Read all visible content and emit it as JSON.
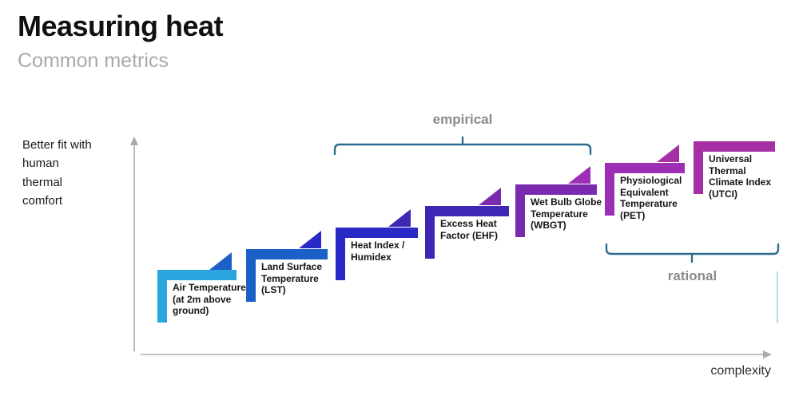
{
  "header": {
    "title": "Measuring heat",
    "subtitle": "Common metrics"
  },
  "y_axis": {
    "label": "Better fit with\nhuman\nthermal\ncomfort"
  },
  "x_axis": {
    "label": "complexity"
  },
  "brackets": {
    "empirical": {
      "label": "empirical"
    },
    "rational": {
      "label": "rational"
    }
  },
  "colors": {
    "bracket": "#2E6D8E",
    "bracket_label": "#8A8A8A",
    "axis_arrow": "#ABABAB",
    "accent_line": "#B5D9E6",
    "title": "#101010",
    "subtitle": "#A9A9A9"
  },
  "steps": [
    {
      "label": "Air Temperature (at 2m above ground)",
      "color": "#2AA5DD"
    },
    {
      "label": "Land Surface Temperature (LST)",
      "color": "#1A60C6"
    },
    {
      "label": "Heat Index / Humidex",
      "color": "#2929C6"
    },
    {
      "label": "Excess Heat Factor (EHF)",
      "color": "#3E28B3"
    },
    {
      "label": "Wet Bulb Globe Temperature (WBGT)",
      "color": "#7A2AAE"
    },
    {
      "label": "Physiological Equivalent Temperature (PET)",
      "color": "#9C2FB5"
    },
    {
      "label": "Universal Thermal Climate Index (UTCI)",
      "color": "#A62FA4"
    }
  ]
}
